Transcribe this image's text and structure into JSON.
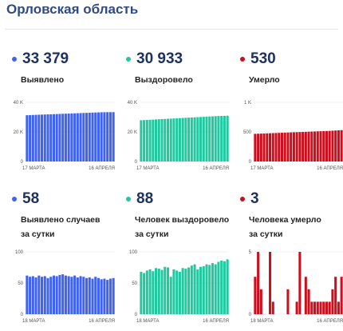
{
  "header": {
    "title": "Орловская область"
  },
  "panels": [
    {
      "value": "33 379",
      "label_lines": [
        "Выявлено"
      ],
      "color": "#3f63f0"
    },
    {
      "value": "30 933",
      "label_lines": [
        "Выздоровело"
      ],
      "color": "#22c8a0"
    },
    {
      "value": "530",
      "label_lines": [
        "Умерло"
      ],
      "color": "#cc0f1e"
    },
    {
      "value": "58",
      "label_lines": [
        "Выявлено случаев",
        "за сутки"
      ],
      "color": "#3f63f0"
    },
    {
      "value": "88",
      "label_lines": [
        "Человек выздоровело",
        "за сутки"
      ],
      "color": "#22c8a0"
    },
    {
      "value": "3",
      "label_lines": [
        "Человека умерло",
        "за сутки"
      ],
      "color": "#cc0f1e"
    }
  ],
  "chart_data": [
    {
      "type": "bar",
      "title": "Выявлено",
      "color": "#3f63f0",
      "ylim": [
        0,
        40000
      ],
      "yticks": [
        {
          "v": 0,
          "label": "0"
        },
        {
          "v": 20000,
          "label": "20 K"
        },
        {
          "v": 40000,
          "label": "40 K"
        }
      ],
      "x_start": "17 МАРТА",
      "x_end": "16 АПРЕЛЯ",
      "values": [
        31300,
        31380,
        31460,
        31540,
        31620,
        31700,
        31780,
        31860,
        31940,
        32020,
        32100,
        32180,
        32260,
        32340,
        32420,
        32500,
        32580,
        32660,
        32740,
        32820,
        32900,
        32980,
        33060,
        33140,
        33220,
        33280,
        33320,
        33350,
        33365,
        33379
      ]
    },
    {
      "type": "bar",
      "title": "Выздоровело",
      "color": "#22c8a0",
      "ylim": [
        0,
        40000
      ],
      "yticks": [
        {
          "v": 0,
          "label": "0"
        },
        {
          "v": 20000,
          "label": "20 K"
        },
        {
          "v": 40000,
          "label": "40 K"
        }
      ],
      "x_start": "17 МАРТА",
      "x_end": "16 АПРЕЛЯ",
      "values": [
        27900,
        28010,
        28120,
        28230,
        28340,
        28450,
        28560,
        28670,
        28780,
        28890,
        29000,
        29110,
        29220,
        29330,
        29440,
        29550,
        29660,
        29770,
        29880,
        29990,
        30100,
        30210,
        30320,
        30430,
        30540,
        30640,
        30730,
        30810,
        30880,
        30933
      ]
    },
    {
      "type": "bar",
      "title": "Умерло",
      "color": "#cc0f1e",
      "ylim": [
        0,
        1000
      ],
      "yticks": [
        {
          "v": 0,
          "label": "0"
        },
        {
          "v": 500,
          "label": "500"
        },
        {
          "v": 1000,
          "label": "1 K"
        }
      ],
      "x_start": "17 МАРТА",
      "x_end": "16 АПРЕЛЯ",
      "values": [
        468,
        470,
        472,
        474,
        476,
        478,
        480,
        482,
        484,
        486,
        488,
        490,
        492,
        494,
        496,
        498,
        500,
        502,
        504,
        506,
        508,
        510,
        512,
        514,
        516,
        518,
        521,
        524,
        527,
        530
      ]
    },
    {
      "type": "bar",
      "title": "Выявлено случаев за сутки",
      "color": "#3f63f0",
      "ylim": [
        0,
        100
      ],
      "yticks": [
        {
          "v": 0,
          "label": "0"
        },
        {
          "v": 50,
          "label": "50"
        },
        {
          "v": 100,
          "label": "100"
        }
      ],
      "x_start": "18 МАРТА",
      "x_end": "16 АПРЕЛЯ",
      "values": [
        62,
        60,
        61,
        59,
        62,
        60,
        61,
        58,
        60,
        62,
        61,
        63,
        64,
        62,
        61,
        60,
        62,
        59,
        61,
        60,
        58,
        59,
        57,
        60,
        58,
        56,
        57,
        55,
        57,
        58
      ]
    },
    {
      "type": "bar",
      "title": "Человек выздоровело за сутки",
      "color": "#22c8a0",
      "ylim": [
        0,
        100
      ],
      "yticks": [
        {
          "v": 0,
          "label": "0"
        },
        {
          "v": 50,
          "label": "50"
        },
        {
          "v": 100,
          "label": "100"
        }
      ],
      "x_start": "18 МАРТА",
      "x_end": "16 АПРЕЛЯ",
      "values": [
        68,
        66,
        70,
        72,
        69,
        74,
        73,
        71,
        76,
        75,
        60,
        72,
        70,
        68,
        74,
        73,
        75,
        78,
        80,
        72,
        76,
        77,
        80,
        79,
        82,
        80,
        84,
        86,
        85,
        88
      ]
    },
    {
      "type": "bar",
      "title": "Человека умерло за сутки",
      "color": "#cc0f1e",
      "ylim": [
        0,
        5
      ],
      "yticks": [
        {
          "v": 0,
          "label": "0"
        },
        {
          "v": 5,
          "label": "5"
        }
      ],
      "x_start": "18 МАРТА",
      "x_end": "16 АПРЕЛЯ",
      "values": [
        3,
        5,
        2,
        0,
        0,
        5,
        1,
        0,
        0,
        0,
        0,
        2,
        0,
        0,
        1,
        5,
        0,
        3,
        2,
        1,
        1,
        1,
        1,
        1,
        1,
        1,
        2,
        3,
        1,
        3
      ]
    }
  ]
}
